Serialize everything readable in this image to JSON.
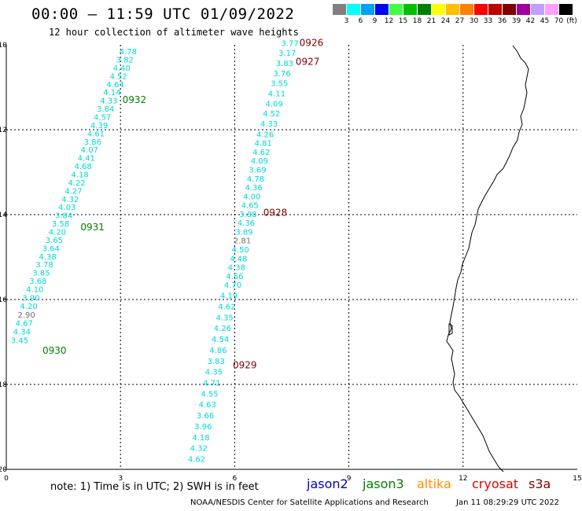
{
  "header": {
    "title": "00:00 – 11:59 UTC 01/09/2022",
    "subtitle": "12 hour collection of altimeter wave heights"
  },
  "color_scale": {
    "unit": "(ft)",
    "entries": [
      {
        "label": "3",
        "color": "#808080"
      },
      {
        "label": "6",
        "color": "#00ffff"
      },
      {
        "label": "9",
        "color": "#00a0ff"
      },
      {
        "label": "12",
        "color": "#0000ff"
      },
      {
        "label": "15",
        "color": "#40ff40"
      },
      {
        "label": "18",
        "color": "#00c000"
      },
      {
        "label": "21",
        "color": "#008000"
      },
      {
        "label": "24",
        "color": "#ffff00"
      },
      {
        "label": "27",
        "color": "#ffc000"
      },
      {
        "label": "30",
        "color": "#ff8000"
      },
      {
        "label": "33",
        "color": "#ff0000"
      },
      {
        "label": "36",
        "color": "#c00000"
      },
      {
        "label": "39",
        "color": "#800000"
      },
      {
        "label": "42",
        "color": "#a000a0"
      },
      {
        "label": "45",
        "color": "#c0a0ff"
      },
      {
        "label": "70",
        "color": "#ffa0ff"
      },
      {
        "label": "",
        "color": "#000000"
      }
    ]
  },
  "map": {
    "lat_ticks": [
      "-10",
      "-12",
      "-14",
      "-16",
      "-18",
      "-20"
    ],
    "lon_ticks": [
      "0",
      "3",
      "6",
      "9",
      "12",
      "15"
    ],
    "lat_range": [
      -20,
      -10
    ],
    "lon_range": [
      0,
      15
    ],
    "point_color": "#00d8d8",
    "low_color": "#707070",
    "tracks": [
      {
        "pass_label": "0932",
        "pass_label_lon": 3.05,
        "pass_label_lat": -11.3,
        "pass_label_color": "#008000",
        "start_lon": 3.2,
        "start_lat": -10.15,
        "end_lon": 0.75,
        "end_lat": -15.75,
        "values": [
          "4.78",
          "3.82",
          "4.40",
          "4.52",
          "4.64",
          "4.14",
          "4.33",
          "3.84",
          "4.57",
          "4.39",
          "4.61",
          "3.86",
          "4.07",
          "4.41",
          "4.68",
          "4.18",
          "4.22",
          "4.27",
          "4.32",
          "4.03",
          "3.84",
          "3.58",
          "4.20",
          "3.65",
          "3.64",
          "4.38",
          "3.78",
          "3.85",
          "3.68",
          "4.10"
        ]
      },
      {
        "pass_label": "0931",
        "pass_label_lon": 1.95,
        "pass_label_lat": -14.3,
        "pass_label_color": "#008000",
        "start_lon": 0.65,
        "start_lat": -15.95,
        "end_lon": 0.35,
        "end_lat": -16.95,
        "values": [
          "3.90",
          "4.20",
          "2.90",
          "4.67",
          "4.34",
          "3.45"
        ]
      },
      {
        "pass_label": "0930",
        "pass_label_lon": 0.95,
        "pass_label_lat": -17.2,
        "pass_label_color": "#008000",
        "start_lon": 0,
        "start_lat": 0,
        "end_lon": 0,
        "end_lat": 0,
        "values": []
      },
      {
        "pass_label": "0926",
        "pass_label_lon": 7.7,
        "pass_label_lat": -9.95,
        "pass_label_color": "#800000",
        "start_lon": 7.45,
        "start_lat": -9.95,
        "end_lon": 6.9,
        "end_lat": -11.85,
        "values": [
          "3.77",
          "3.17",
          "3.83",
          "3.76",
          "3.55",
          "4.11",
          "4.09",
          "4.52",
          "4.33"
        ]
      },
      {
        "pass_label": "0927",
        "pass_label_lon": 7.6,
        "pass_label_lat": -10.4,
        "pass_label_color": "#800000",
        "start_lon": 0,
        "start_lat": 0,
        "end_lon": 0,
        "end_lat": 0,
        "values": []
      },
      {
        "pass_label": "0928",
        "pass_label_lon": 6.75,
        "pass_label_lat": -13.95,
        "pass_label_color": "#800000",
        "start_lon": 6.8,
        "start_lat": -12.1,
        "end_lon": 5.95,
        "end_lat": -15.65,
        "values": [
          "4.26",
          "4.81",
          "4.62",
          "4.09",
          "3.69",
          "4.78",
          "4.36",
          "4.00",
          "4.65",
          "3.88",
          "4.36",
          "3.89",
          "2.81",
          "4.50",
          "4.48",
          "4.38",
          "4.56",
          "4.70"
        ]
      },
      {
        "pass_label": "0929",
        "pass_label_lon": 5.95,
        "pass_label_lat": -17.55,
        "pass_label_color": "#800000",
        "start_lon": 5.85,
        "start_lat": -15.9,
        "end_lon": 5.0,
        "end_lat": -19.75,
        "values": [
          "4.19",
          "4.62",
          "4.35",
          "4.26",
          "4.54",
          "4.86",
          "3.83",
          "4.35",
          "4.71",
          "4.55",
          "4.63",
          "3.66",
          "3.96",
          "4.18",
          "4.32",
          "4.62"
        ]
      }
    ]
  },
  "footer": {
    "note": "note:  1) Time is in UTC;  2) SWH is in feet",
    "satellites": [
      {
        "name": "jason2",
        "color": "#0000c0"
      },
      {
        "name": "jason3",
        "color": "#008000"
      },
      {
        "name": "altika",
        "color": "#ff9000"
      },
      {
        "name": "cryosat",
        "color": "#e00000"
      },
      {
        "name": "s3a",
        "color": "#800000"
      }
    ],
    "credit": "NOAA/NESDIS Center for Satellite Applications and Research",
    "timestamp": "Jan 11 08:29:29 UTC 2022"
  }
}
